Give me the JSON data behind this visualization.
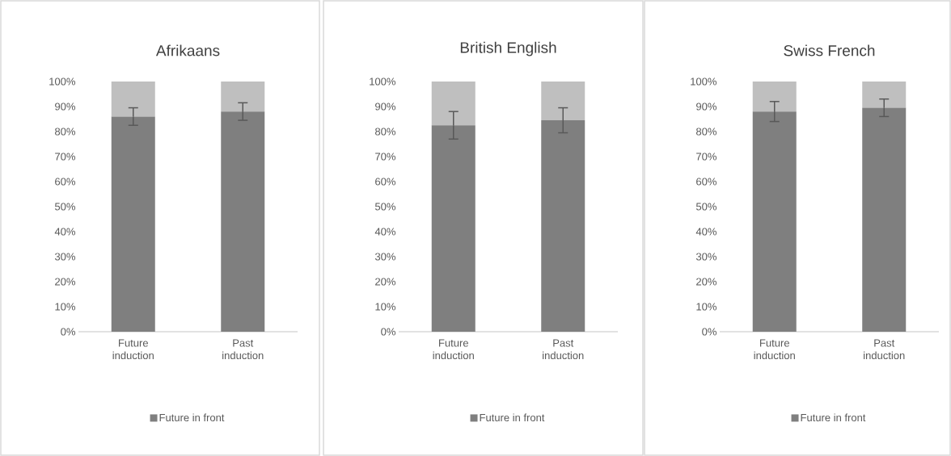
{
  "chart_data": [
    {
      "type": "bar",
      "stacked": true,
      "title": "Afrikaans",
      "categories": [
        "Future induction",
        "Past induction"
      ],
      "ylim": [
        0,
        100
      ],
      "yticks": [
        {
          "value": 0,
          "label": "0%"
        },
        {
          "value": 10,
          "label": "10%"
        },
        {
          "value": 20,
          "label": "20%"
        },
        {
          "value": 30,
          "label": "30%"
        },
        {
          "value": 40,
          "label": "40%"
        },
        {
          "value": 50,
          "label": "50%"
        },
        {
          "value": 60,
          "label": "60%"
        },
        {
          "value": 70,
          "label": "70%"
        },
        {
          "value": 80,
          "label": "80%"
        },
        {
          "value": 90,
          "label": "90%"
        },
        {
          "value": 100,
          "label": "100%"
        }
      ],
      "legend": "bottom",
      "series": [
        {
          "name": "Future in front",
          "color": "#7f7f7f",
          "values": [
            86,
            88
          ],
          "errors": [
            3.5,
            3.5
          ]
        },
        {
          "color": "#bfbfbf",
          "values": [
            14,
            12
          ]
        }
      ]
    },
    {
      "type": "bar",
      "stacked": true,
      "title": "British English",
      "categories": [
        "Future induction",
        "Past induction"
      ],
      "ylim": [
        0,
        100
      ],
      "yticks": [
        {
          "value": 0,
          "label": "0%"
        },
        {
          "value": 10,
          "label": "10%"
        },
        {
          "value": 20,
          "label": "20%"
        },
        {
          "value": 30,
          "label": "30%"
        },
        {
          "value": 40,
          "label": "40%"
        },
        {
          "value": 50,
          "label": "50%"
        },
        {
          "value": 60,
          "label": "60%"
        },
        {
          "value": 70,
          "label": "70%"
        },
        {
          "value": 80,
          "label": "80%"
        },
        {
          "value": 90,
          "label": "90%"
        },
        {
          "value": 100,
          "label": "100%"
        }
      ],
      "legend": "bottom",
      "series": [
        {
          "name": "Future in front",
          "color": "#7f7f7f",
          "values": [
            82.5,
            84.5
          ],
          "errors": [
            5.5,
            5
          ]
        },
        {
          "color": "#bfbfbf",
          "values": [
            17.5,
            15.5
          ]
        }
      ]
    },
    {
      "type": "bar",
      "stacked": true,
      "title": "Swiss French",
      "categories": [
        "Future induction",
        "Past induction"
      ],
      "ylim": [
        0,
        100
      ],
      "yticks": [
        {
          "value": 0,
          "label": "0%"
        },
        {
          "value": 10,
          "label": "10%"
        },
        {
          "value": 20,
          "label": "20%"
        },
        {
          "value": 30,
          "label": "30%"
        },
        {
          "value": 40,
          "label": "40%"
        },
        {
          "value": 50,
          "label": "50%"
        },
        {
          "value": 60,
          "label": "60%"
        },
        {
          "value": 70,
          "label": "70%"
        },
        {
          "value": 80,
          "label": "80%"
        },
        {
          "value": 90,
          "label": "90%"
        },
        {
          "value": 100,
          "label": "100%"
        }
      ],
      "legend": "bottom",
      "series": [
        {
          "name": "Future in front",
          "color": "#7f7f7f",
          "values": [
            88,
            89.5
          ],
          "errors": [
            4,
            3.5
          ]
        },
        {
          "color": "#bfbfbf",
          "values": [
            12,
            10.5
          ]
        }
      ]
    }
  ]
}
